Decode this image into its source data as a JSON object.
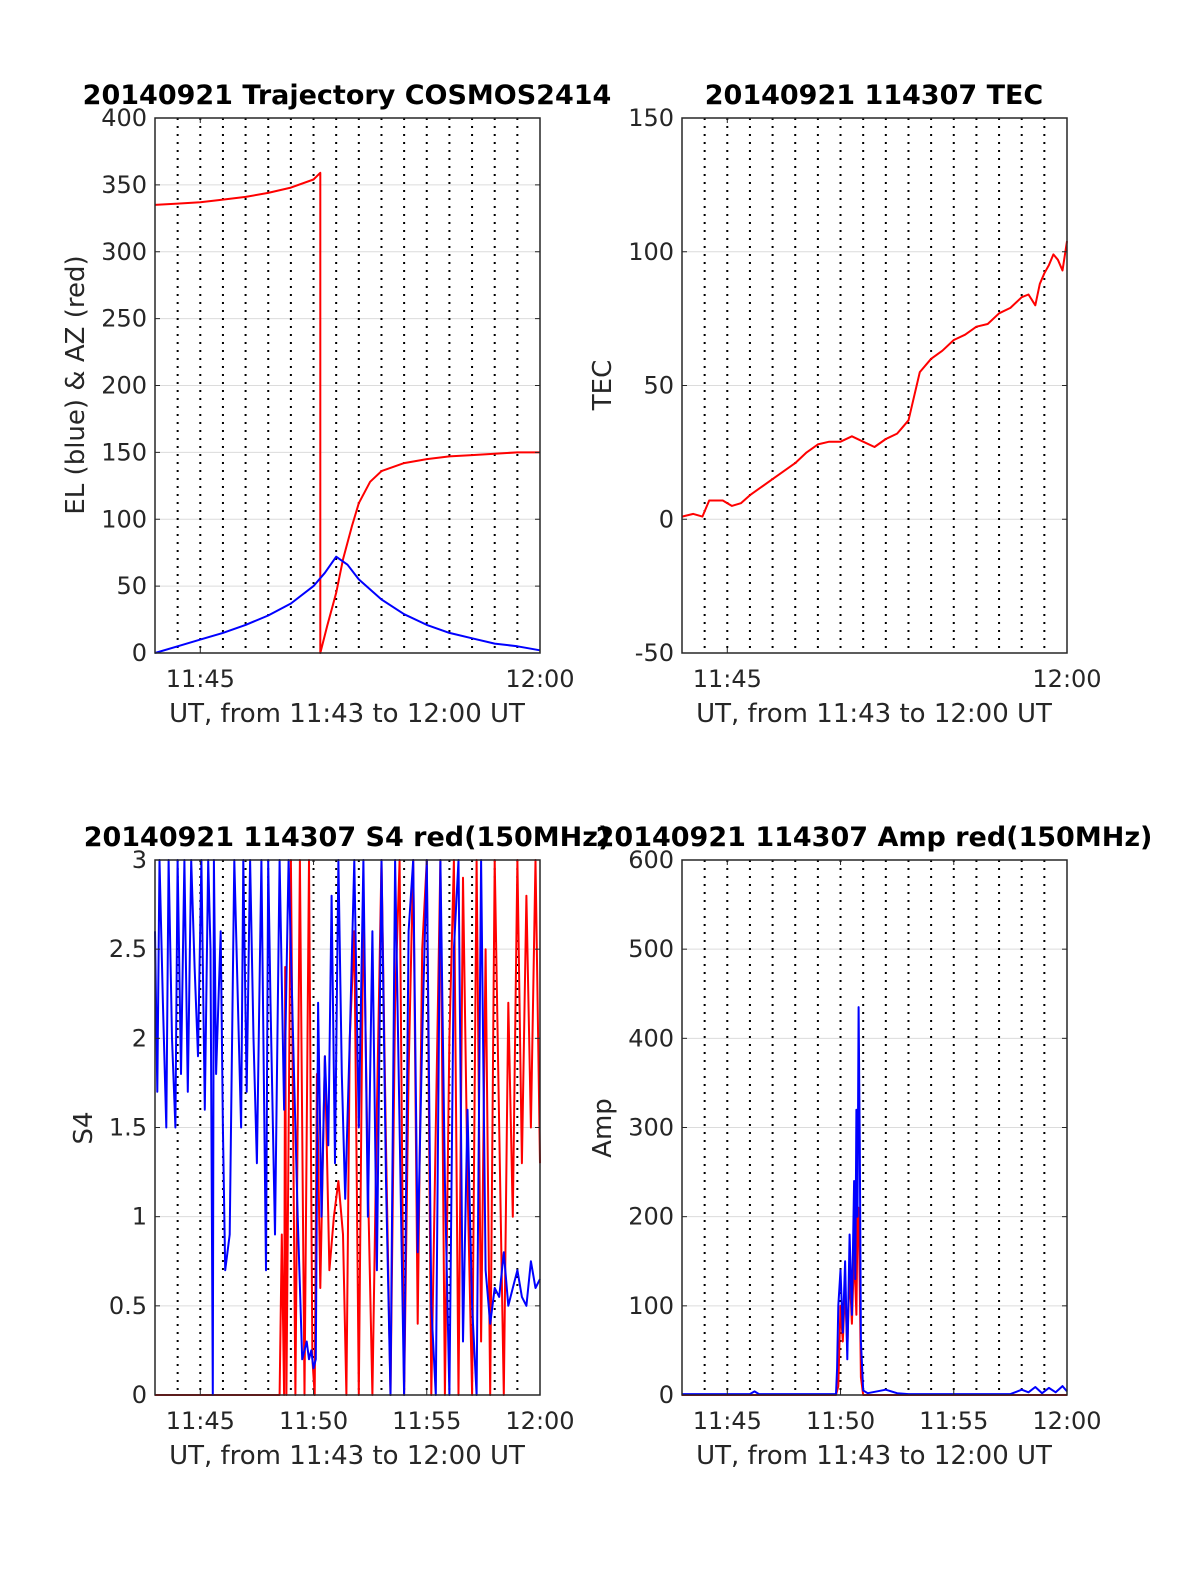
{
  "figure": {
    "background": "#ffffff"
  },
  "chart_data": [
    {
      "type": "line",
      "title": "20140921 Trajectory COSMOS2414",
      "xlabel": "UT, from 11:43 to 12:00 UT",
      "ylabel": "EL (blue) & AZ (red)",
      "xlim": [
        0,
        17
      ],
      "ylim": [
        0,
        400
      ],
      "x_ticks": [
        {
          "x": 2,
          "label": "11:45"
        },
        {
          "x": 17,
          "label": "12:00"
        }
      ],
      "y_ticks": [
        0,
        50,
        100,
        150,
        200,
        250,
        300,
        350,
        400
      ],
      "vgrid_x": [
        1,
        2,
        3,
        4,
        5,
        6,
        7,
        8,
        9,
        10,
        11,
        12,
        13,
        14,
        15,
        16
      ],
      "grid": true,
      "series": [
        {
          "color": "#ff0000",
          "x": [
            0,
            1,
            2,
            3,
            4,
            5,
            6,
            7,
            7.3,
            7.3,
            7.6,
            8.0,
            8.3,
            8.7,
            9.0,
            9.5,
            10,
            11,
            12,
            13,
            14,
            15,
            16,
            17
          ],
          "y": [
            335,
            336,
            337,
            339,
            341,
            344,
            348,
            354,
            359,
            0,
            20,
            45,
            70,
            95,
            112,
            128,
            136,
            142,
            145,
            147,
            148,
            149,
            150,
            150
          ]
        },
        {
          "color": "#0000ff",
          "x": [
            0,
            1,
            2,
            3,
            4,
            5,
            6,
            7,
            7.5,
            8.0,
            8.5,
            9,
            10,
            11,
            12,
            13,
            14,
            15,
            16,
            17
          ],
          "y": [
            0,
            5,
            10,
            15,
            21,
            28,
            37,
            50,
            60,
            72,
            66,
            55,
            40,
            29,
            21,
            15,
            11,
            7,
            5,
            2
          ]
        }
      ]
    },
    {
      "type": "line",
      "title": "20140921 114307 TEC",
      "xlabel": "UT, from 11:43 to 12:00 UT",
      "ylabel": "TEC",
      "xlim": [
        0,
        17
      ],
      "ylim": [
        -50,
        150
      ],
      "x_ticks": [
        {
          "x": 2,
          "label": "11:45"
        },
        {
          "x": 17,
          "label": "12:00"
        }
      ],
      "y_ticks": [
        -50,
        0,
        50,
        100,
        150
      ],
      "vgrid_x": [
        1,
        2,
        3,
        4,
        5,
        6,
        7,
        8,
        9,
        10,
        11,
        12,
        13,
        14,
        15,
        16
      ],
      "grid": true,
      "series": [
        {
          "color": "#ff0000",
          "x": [
            0,
            0.5,
            0.9,
            1.2,
            1.8,
            2.2,
            2.6,
            3.0,
            3.5,
            4.0,
            4.5,
            5.0,
            5.5,
            6.0,
            6.5,
            7.0,
            7.5,
            8.0,
            8.5,
            9.0,
            9.5,
            9.7,
            10.0,
            10.5,
            11.0,
            11.5,
            12.0,
            12.5,
            13.0,
            13.5,
            14.0,
            14.5,
            15.0,
            15.3,
            15.6,
            15.8,
            16.0,
            16.2,
            16.4,
            16.6,
            16.8,
            17.0
          ],
          "y": [
            1,
            2,
            1,
            7,
            7,
            5,
            6,
            9,
            12,
            15,
            18,
            21,
            25,
            28,
            29,
            29,
            31,
            29,
            27,
            30,
            32,
            34,
            37,
            55,
            60,
            63,
            67,
            69,
            72,
            73,
            77,
            79,
            83,
            84,
            80,
            88,
            92,
            95,
            99,
            97,
            93,
            104
          ]
        }
      ]
    },
    {
      "type": "line",
      "title": "20140921 114307 S4 red(150MHz)",
      "xlabel": "UT, from 11:43 to 12:00 UT",
      "ylabel": "S4",
      "xlim": [
        0,
        17
      ],
      "ylim": [
        0,
        3
      ],
      "x_ticks": [
        {
          "x": 2,
          "label": "11:45"
        },
        {
          "x": 7,
          "label": "11:50"
        },
        {
          "x": 12,
          "label": "11:55"
        },
        {
          "x": 17,
          "label": "12:00"
        }
      ],
      "y_ticks": [
        0,
        0.5,
        1,
        1.5,
        2,
        2.5,
        3
      ],
      "y_tick_labels": [
        "0",
        "0.5",
        "1",
        "1.5",
        "2",
        "2.5",
        "3"
      ],
      "vgrid_x": [
        1,
        2,
        3,
        4,
        5,
        6,
        7,
        8,
        9,
        10,
        11,
        12,
        13,
        14,
        15,
        16
      ],
      "grid": true,
      "series": [
        {
          "color": "#ff0000",
          "x": [
            0,
            5.5,
            5.6,
            5.7,
            5.75,
            5.8,
            6.0,
            6.2,
            6.4,
            6.6,
            6.8,
            6.95,
            7.05,
            7.15,
            7.3,
            7.5,
            7.7,
            7.9,
            8.1,
            8.3,
            8.45,
            8.6,
            8.8,
            8.9,
            9.0,
            9.2,
            9.4,
            9.6,
            9.8,
            10.0,
            10.2,
            10.4,
            10.6,
            10.8,
            11.0,
            11.2,
            11.4,
            11.6,
            11.8,
            12.0,
            12.2,
            12.4,
            12.6,
            12.8,
            13.0,
            13.2,
            13.4,
            13.6,
            13.8,
            14.0,
            14.2,
            14.4,
            14.6,
            14.8,
            15.0,
            15.2,
            15.4,
            15.6,
            15.8,
            16.0,
            16.2,
            16.4,
            16.6,
            16.8,
            17.0
          ],
          "y": [
            0,
            0,
            0.9,
            0,
            2.4,
            0,
            3,
            0,
            3,
            0,
            3,
            0.2,
            0,
            1.8,
            0.6,
            1.9,
            0.7,
            1.0,
            1.2,
            0.9,
            0,
            2.0,
            2.6,
            1.3,
            0,
            2.8,
            1.2,
            0,
            1.6,
            3,
            1.4,
            0,
            2.2,
            3,
            0,
            1.8,
            3,
            0.4,
            2.5,
            3,
            0,
            1.5,
            3,
            0,
            2.0,
            3,
            0,
            2.9,
            1.2,
            0,
            3,
            0.3,
            2.5,
            0,
            3,
            1.5,
            0,
            2.2,
            1.0,
            3,
            1.3,
            2.8,
            1.5,
            3,
            1.3
          ]
        },
        {
          "color": "#0000ff",
          "x": [
            0,
            0.1,
            0.2,
            0.35,
            0.5,
            0.6,
            0.75,
            0.9,
            1.0,
            1.15,
            1.3,
            1.45,
            1.6,
            1.75,
            1.9,
            2.05,
            2.2,
            2.35,
            2.45,
            2.55,
            2.6,
            2.7,
            2.9,
            3.0,
            3.1,
            3.3,
            3.5,
            3.7,
            3.8,
            3.9,
            4.05,
            4.2,
            4.35,
            4.5,
            4.7,
            4.9,
            5.0,
            5.1,
            5.3,
            5.5,
            5.7,
            5.9,
            6.1,
            6.3,
            6.5,
            6.7,
            6.8,
            6.9,
            7.0,
            7.1,
            7.2,
            7.35,
            7.5,
            7.65,
            7.8,
            7.95,
            8.1,
            8.25,
            8.4,
            8.6,
            8.8,
            9.0,
            9.2,
            9.4,
            9.6,
            9.8,
            10.0,
            10.2,
            10.4,
            10.6,
            10.8,
            11.0,
            11.2,
            11.4,
            11.6,
            11.8,
            12.0,
            12.2,
            12.4,
            12.6,
            12.8,
            13.0,
            13.2,
            13.4,
            13.6,
            13.8,
            14.0,
            14.2,
            14.4,
            14.6,
            14.8,
            15.0,
            15.2,
            15.4,
            15.6,
            15.8,
            16.0,
            16.2,
            16.4,
            16.6,
            16.8,
            17.0
          ],
          "y": [
            2.6,
            1.7,
            3,
            2.2,
            1.5,
            3,
            2.0,
            1.5,
            3,
            1.8,
            3,
            1.7,
            3,
            2.4,
            1.9,
            3,
            1.6,
            3,
            2.5,
            0,
            3,
            1.8,
            2.6,
            1.5,
            0.7,
            0.9,
            3,
            2.0,
            1.5,
            3,
            1.7,
            3,
            2.0,
            1.3,
            3,
            0.7,
            3,
            2.2,
            0.9,
            3,
            1.6,
            3,
            2.0,
            1.0,
            0.2,
            0.3,
            0.2,
            0.25,
            0.15,
            0.2,
            2.2,
            1.0,
            1.9,
            1.4,
            2.8,
            1.3,
            3,
            1.8,
            1.1,
            2.0,
            3,
            1.5,
            3,
            1.0,
            2.6,
            0.7,
            3,
            1.2,
            0,
            3,
            1.5,
            0,
            2.6,
            3,
            0.8,
            2.0,
            3,
            0.5,
            0,
            3,
            1.2,
            0,
            2.5,
            3,
            0.3,
            1.6,
            0.5,
            0,
            3,
            0.7,
            0.4,
            0.6,
            0.55,
            0.8,
            0.5,
            0.6,
            0.7,
            0.55,
            0.5,
            0.75,
            0.6,
            0.65
          ]
        }
      ]
    },
    {
      "type": "line",
      "title": "20140921 114307 Amp red(150MHz)",
      "xlabel": "UT, from 11:43 to 12:00 UT",
      "ylabel": "Amp",
      "xlim": [
        0,
        17
      ],
      "ylim": [
        0,
        600
      ],
      "x_ticks": [
        {
          "x": 2,
          "label": "11:45"
        },
        {
          "x": 7,
          "label": "11:50"
        },
        {
          "x": 12,
          "label": "11:55"
        },
        {
          "x": 17,
          "label": "12:00"
        }
      ],
      "y_ticks": [
        0,
        100,
        200,
        300,
        400,
        500,
        600
      ],
      "vgrid_x": [
        1,
        2,
        3,
        4,
        5,
        6,
        7,
        8,
        9,
        10,
        11,
        12,
        13,
        14,
        15,
        16
      ],
      "grid": true,
      "series": [
        {
          "color": "#ff0000",
          "x": [
            0,
            6.8,
            6.9,
            7.0,
            7.1,
            7.2,
            7.3,
            7.4,
            7.5,
            7.6,
            7.7,
            7.75,
            7.8,
            7.85,
            7.9,
            8.0,
            17
          ],
          "y": [
            0,
            0,
            10,
            100,
            60,
            120,
            50,
            140,
            80,
            160,
            90,
            200,
            210,
            120,
            20,
            0,
            0
          ]
        },
        {
          "color": "#0000ff",
          "x": [
            0,
            3,
            3.2,
            3.4,
            6.8,
            6.85,
            6.9,
            7.0,
            7.1,
            7.2,
            7.3,
            7.4,
            7.5,
            7.6,
            7.65,
            7.7,
            7.75,
            7.8,
            7.85,
            7.9,
            8.0,
            8.2,
            9.0,
            9.5,
            10.0,
            14.5,
            15.0,
            15.3,
            15.6,
            15.9,
            16.2,
            16.5,
            16.8,
            17.0
          ],
          "y": [
            1,
            1,
            4,
            1,
            1,
            30,
            100,
            140,
            70,
            150,
            40,
            180,
            90,
            240,
            130,
            320,
            200,
            435,
            280,
            60,
            5,
            2,
            6,
            2,
            1,
            1,
            6,
            3,
            9,
            2,
            8,
            3,
            10,
            4
          ]
        }
      ]
    }
  ]
}
